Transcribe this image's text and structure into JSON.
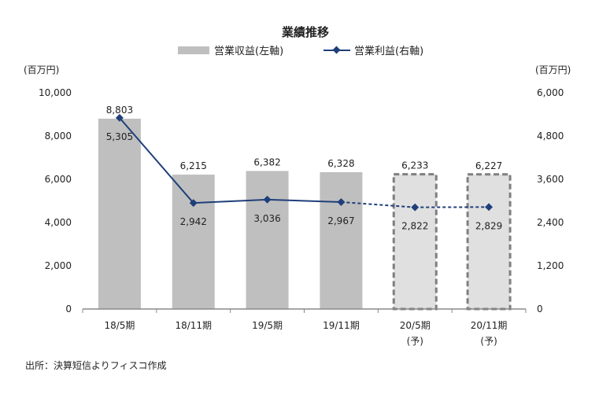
{
  "chart_data": {
    "type": "bar+line",
    "title": "業績推移",
    "categories": [
      "18/5期",
      "18/11期",
      "19/5期",
      "19/11期",
      "20/5期",
      "20/11期"
    ],
    "category_sublabels": [
      "",
      "",
      "",
      "",
      "(予)",
      "(予)"
    ],
    "left_axis": {
      "label": "(百万円)",
      "range": [
        0,
        10000
      ],
      "ticks": [
        "0",
        "2,000",
        "4,000",
        "6,000",
        "8,000",
        "10,000"
      ],
      "tick_values": [
        0,
        2000,
        4000,
        6000,
        8000,
        10000
      ]
    },
    "right_axis": {
      "label": "(百万円)",
      "range": [
        0,
        6000
      ],
      "ticks": [
        "0",
        "1,200",
        "2,400",
        "3,600",
        "4,800",
        "6,000"
      ],
      "tick_values": [
        0,
        1200,
        2400,
        3600,
        4800,
        6000
      ]
    },
    "series": [
      {
        "name": "営業収益(左軸)",
        "type": "bar",
        "axis": "left",
        "values": [
          8803,
          6215,
          6382,
          6328,
          6233,
          6227
        ],
        "labels": [
          "8,803",
          "6,215",
          "6,382",
          "6,328",
          "6,233",
          "6,227"
        ],
        "forecast": [
          false,
          false,
          false,
          false,
          true,
          true
        ],
        "color": "#bfbfbf",
        "forecast_color": "#e0e0e0"
      },
      {
        "name": "営業利益(右軸)",
        "type": "line",
        "axis": "right",
        "values": [
          5305,
          2942,
          3036,
          2967,
          2822,
          2829
        ],
        "labels": [
          "5,305",
          "2,942",
          "3,036",
          "2,967",
          "2,822",
          "2,829"
        ],
        "forecast": [
          false,
          false,
          false,
          false,
          true,
          true
        ],
        "color": "#1f3f7a"
      }
    ],
    "legend": "top-center",
    "grid": false
  },
  "source": "出所：決算短信よりフィスコ作成"
}
